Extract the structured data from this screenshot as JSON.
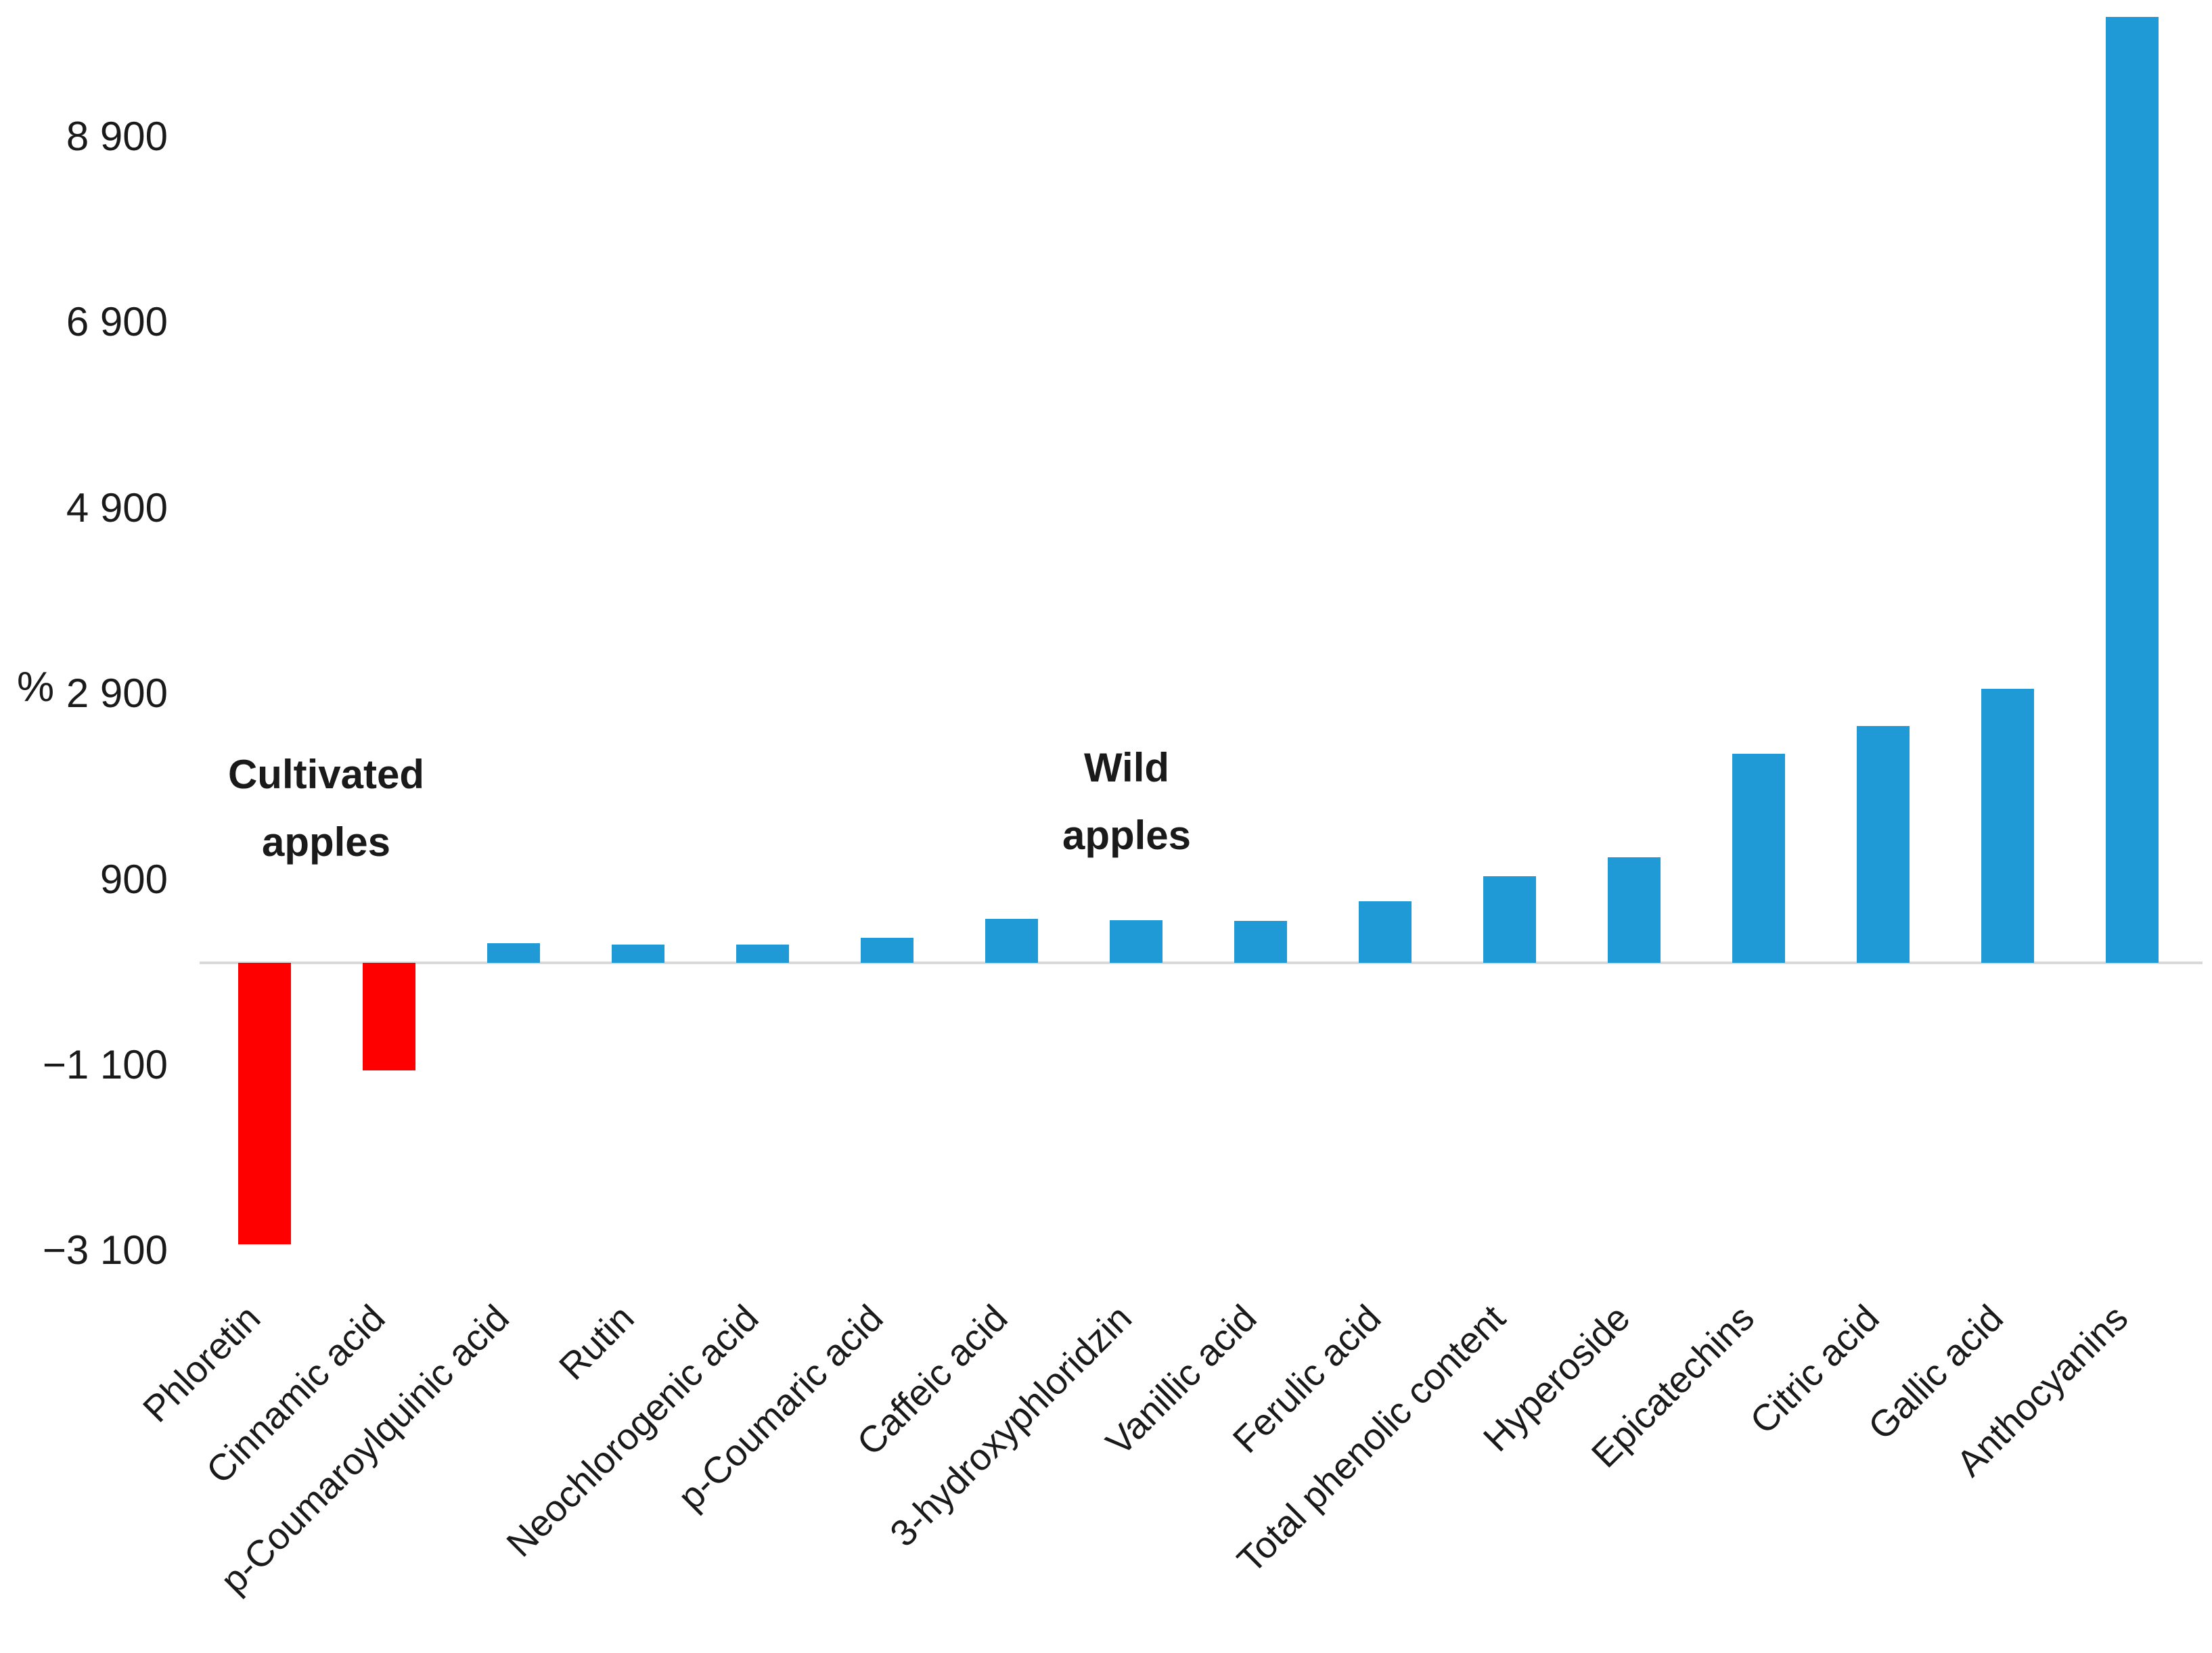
{
  "chart_data": {
    "type": "bar",
    "title": "",
    "xlabel": "",
    "ylabel": "%",
    "grid": false,
    "legend": "none",
    "ylim": [
      -3600,
      10400
    ],
    "axis_line_color": "#d9d9d9",
    "text_color": "#1a1a1a",
    "bar_colors": {
      "positive": "#1f9ad6",
      "negative": "#ff0000"
    },
    "y_ticks": [
      {
        "label": "8 900",
        "value": 8900
      },
      {
        "label": "6 900",
        "value": 6900
      },
      {
        "label": "4 900",
        "value": 4900
      },
      {
        "label": "2 900",
        "value": 2900
      },
      {
        "label": "900",
        "value": 900
      },
      {
        "label": "−1 100",
        "value": -1100
      },
      {
        "label": "−3 100",
        "value": -3100
      }
    ],
    "categories": [
      "Phloretin",
      "Cinnamic acid",
      "p-Coumaroylquinic acid",
      "Rutin",
      "Neochlorogenic acid",
      "p-Coumaric acid",
      "Caffeic acid",
      "3-hydroxyphloridzin",
      "Vanillic acid",
      "Ferulic acid",
      "Total phenolic content",
      "Hyperoside",
      "Epicatechins",
      "Citric acid",
      "Gallic acid",
      "Anthocyanins"
    ],
    "values": [
      -3030,
      -1160,
      210,
      200,
      200,
      270,
      475,
      460,
      450,
      665,
      930,
      1140,
      2250,
      2550,
      2950,
      10190
    ],
    "annotations": [
      {
        "line1": "Cultivated",
        "line2": "apples"
      },
      {
        "line1": "Wild",
        "line2": "apples"
      }
    ]
  }
}
